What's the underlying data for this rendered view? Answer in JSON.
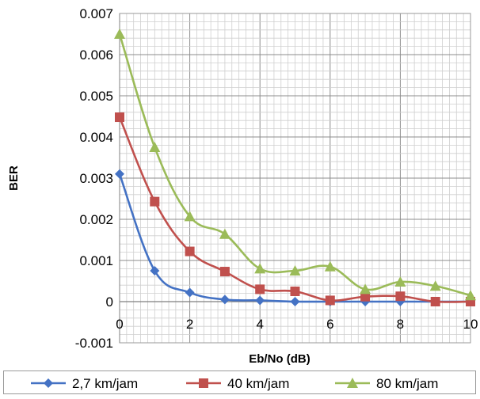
{
  "chart_data": {
    "type": "line",
    "xlabel": "Eb/No (dB)",
    "ylabel": "BER",
    "xlim": [
      0,
      10
    ],
    "ylim": [
      -0.001,
      0.007
    ],
    "x_ticks": [
      "0",
      "2",
      "4",
      "6",
      "8",
      "10"
    ],
    "y_ticks": [
      "-0.001",
      "0",
      "0.001",
      "0.002",
      "0.003",
      "0.004",
      "0.005",
      "0.006",
      "0.007"
    ],
    "grid": true,
    "legend_position": "bottom",
    "x": [
      0,
      1,
      2,
      3,
      4,
      5,
      6,
      7,
      8,
      9,
      10
    ],
    "series": [
      {
        "name": "2,7 km/jam",
        "color": "#4472c4",
        "marker": "diamond",
        "values": [
          0.0031,
          0.00075,
          0.00022,
          5e-05,
          3e-05,
          0.0,
          0.0,
          0.0,
          0.0,
          0.0,
          0.0
        ]
      },
      {
        "name": "40 km/jam",
        "color": "#c0504d",
        "marker": "square",
        "values": [
          0.00448,
          0.00243,
          0.00122,
          0.00073,
          0.0003,
          0.00025,
          3e-05,
          0.00012,
          0.00013,
          0.0,
          0.0
        ]
      },
      {
        "name": "80 km/jam",
        "color": "#9bbb59",
        "marker": "triangle",
        "values": [
          0.0065,
          0.00375,
          0.00207,
          0.00164,
          0.0008,
          0.00075,
          0.00085,
          0.0003,
          0.00048,
          0.00038,
          0.00015
        ]
      }
    ]
  }
}
